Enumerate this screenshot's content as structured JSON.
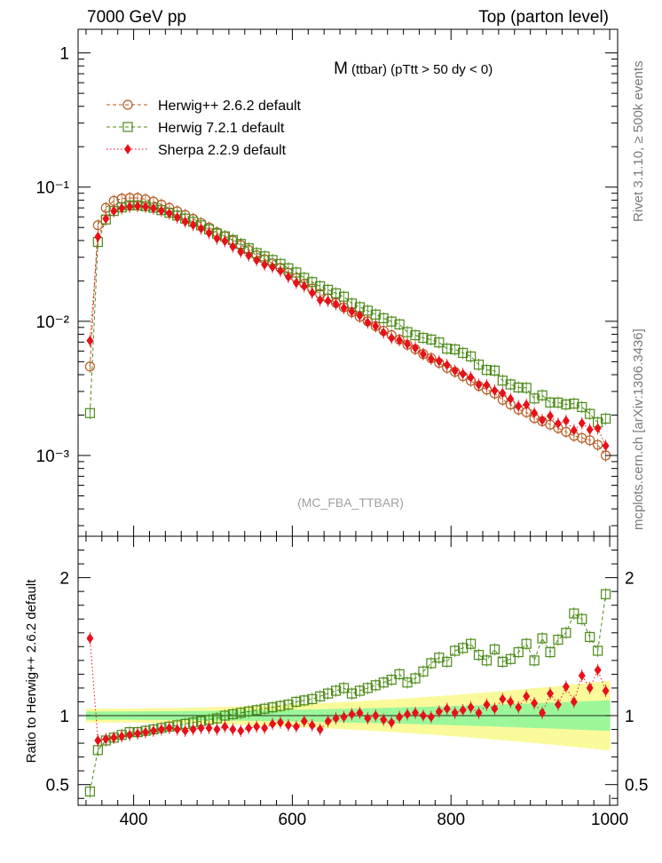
{
  "header": {
    "left": "7000 GeV pp",
    "right": "Top (parton level)"
  },
  "side_labels": {
    "top": "Rivet 3.1.10, ≥ 500k events",
    "bottom": "mcplots.cern.ch [arXiv:1306.3436]"
  },
  "chart_data": [
    {
      "type": "scatter",
      "panel": "main",
      "title_main": "M",
      "title_sub": "(ttbar) (pTtt > 50 dy < 0)",
      "watermark": "(MC_FBA_TTBAR)",
      "ylabel": "",
      "yscale": "log",
      "ylim": [
        0.00025,
        1.5
      ],
      "xlim": [
        330,
        1010
      ],
      "y_ticks": [
        0.001,
        0.01,
        0.1,
        1
      ],
      "y_tick_labels": [
        "10⁻³",
        "10⁻²",
        "10⁻¹",
        "1"
      ],
      "legend_position": "top-left",
      "series": [
        {
          "name": "Herwig++ 2.6.2 default",
          "color": "#b35a1f",
          "marker": "open-circle",
          "line": "dashed"
        },
        {
          "name": "Herwig 7.2.1 default",
          "color": "#4a8a16",
          "marker": "open-square",
          "line": "dashed"
        },
        {
          "name": "Sherpa 2.2.9 default",
          "color": "#e8101a",
          "marker": "filled-diamond",
          "line": "dotted"
        }
      ]
    },
    {
      "type": "scatter",
      "panel": "ratio",
      "ylabel": "Ratio to Herwig++ 2.6.2 default",
      "yscale": "linear",
      "ylim": [
        0.35,
        2.3
      ],
      "xlim": [
        330,
        1010
      ],
      "xlabel": "",
      "x_ticks": [
        400,
        600,
        800,
        1000
      ],
      "y_ticks": [
        0.5,
        1,
        2
      ],
      "band_colors": {
        "inner": "#9af79a",
        "outer": "#fbfa9b"
      }
    }
  ]
}
